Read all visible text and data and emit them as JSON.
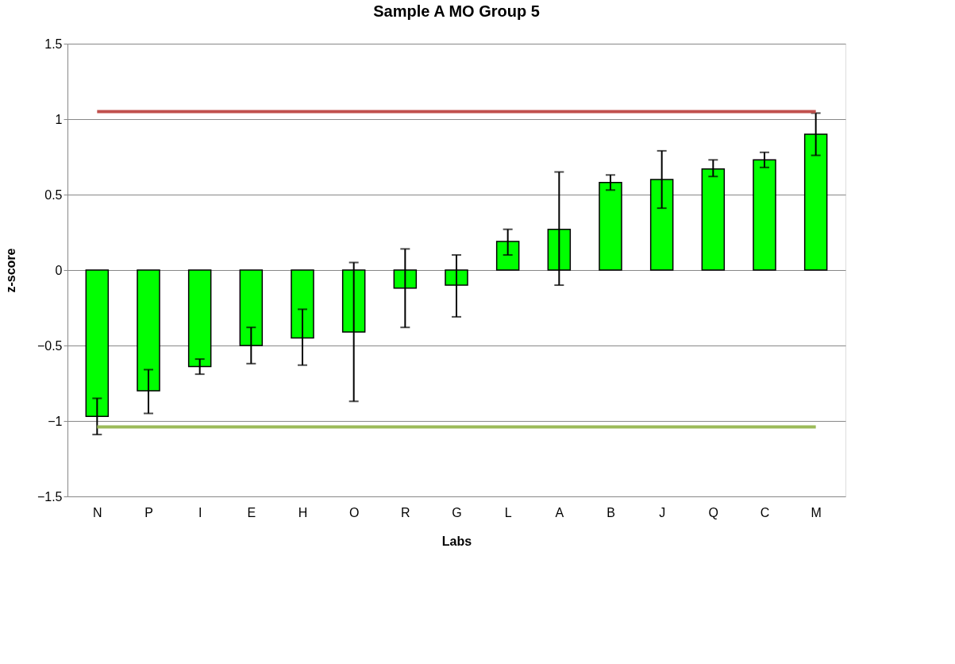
{
  "chart_data": {
    "type": "bar",
    "title": "Sample A    MO Group 5",
    "xlabel": "Labs",
    "ylabel": "z-score",
    "categories": [
      "N",
      "P",
      "I",
      "E",
      "H",
      "O",
      "R",
      "G",
      "L",
      "A",
      "B",
      "J",
      "Q",
      "C",
      "M"
    ],
    "values": [
      -0.97,
      -0.8,
      -0.64,
      -0.5,
      -0.45,
      -0.41,
      -0.12,
      -0.1,
      0.19,
      0.27,
      0.58,
      0.6,
      0.67,
      0.73,
      0.9
    ],
    "errors": [
      [
        -1.09,
        -0.85
      ],
      [
        -0.95,
        -0.66
      ],
      [
        -0.69,
        -0.59
      ],
      [
        -0.62,
        -0.38
      ],
      [
        -0.63,
        -0.26
      ],
      [
        -0.87,
        0.05
      ],
      [
        -0.38,
        0.14
      ],
      [
        -0.31,
        0.1
      ],
      [
        0.1,
        0.27
      ],
      [
        -0.1,
        0.65
      ],
      [
        0.53,
        0.63
      ],
      [
        0.41,
        0.79
      ],
      [
        0.62,
        0.73
      ],
      [
        0.68,
        0.78
      ],
      [
        0.76,
        1.04
      ]
    ],
    "color": "#00ff00",
    "ylim": [
      -1.5,
      1.5
    ],
    "yticks": [
      -1.5,
      -1,
      -0.5,
      0,
      0.5,
      1,
      1.5
    ],
    "grid": "y",
    "ref_lines": [
      {
        "axis": "y",
        "value": 1.05,
        "color": "#c0504d"
      },
      {
        "axis": "y",
        "value": -1.04,
        "color": "#9bbb59"
      }
    ]
  }
}
